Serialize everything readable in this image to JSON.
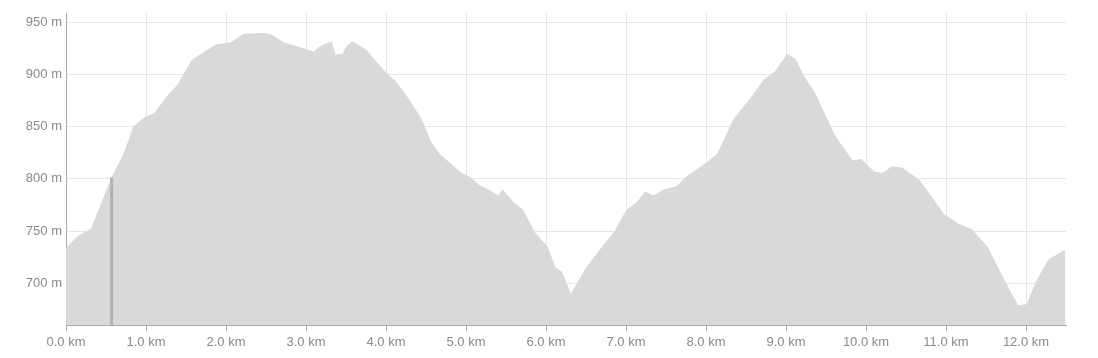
{
  "chart_data": {
    "type": "area",
    "color": "#d9d9d9",
    "x": [
      0,
      0.16,
      0.31,
      0.56,
      0.72,
      0.84,
      0.98,
      1.1,
      1.28,
      1.39,
      1.57,
      1.73,
      1.88,
      2.06,
      2.22,
      2.49,
      2.58,
      2.72,
      2.9,
      3.1,
      3.17,
      3.32,
      3.37,
      3.46,
      3.5,
      3.58,
      3.75,
      4.0,
      4.13,
      4.29,
      4.45,
      4.56,
      4.67,
      4.85,
      4.96,
      5.05,
      5.17,
      5.28,
      5.4,
      5.46,
      5.59,
      5.71,
      5.86,
      6.02,
      6.12,
      6.2,
      6.31,
      6.5,
      6.72,
      6.85,
      7.0,
      7.14,
      7.24,
      7.34,
      7.48,
      7.63,
      7.77,
      8.01,
      8.14,
      8.34,
      8.59,
      8.72,
      8.86,
      9.02,
      9.12,
      9.23,
      9.36,
      9.61,
      9.83,
      9.94,
      10.1,
      10.21,
      10.32,
      10.45,
      10.67,
      10.98,
      11.16,
      11.32,
      11.52,
      11.7,
      11.9,
      12.01,
      12.12,
      12.28,
      12.49
    ],
    "values": [
      734,
      746,
      752,
      800,
      824,
      850,
      859,
      863,
      881,
      890,
      914,
      922,
      929,
      931,
      939,
      940,
      938,
      931,
      927,
      922,
      927,
      932,
      919,
      920,
      927,
      932,
      924,
      902,
      893,
      876,
      857,
      836,
      824,
      812,
      805,
      802,
      794,
      790,
      784,
      790,
      778,
      771,
      749,
      735,
      715,
      711,
      690,
      715,
      737,
      749,
      770,
      778,
      788,
      784,
      790,
      793,
      803,
      816,
      824,
      857,
      881,
      895,
      903,
      920,
      915,
      898,
      883,
      842,
      818,
      819,
      807,
      806,
      812,
      811,
      799,
      766,
      757,
      752,
      735,
      708,
      679,
      680,
      701,
      723,
      732
    ],
    "xlim": [
      0,
      12.5
    ],
    "ylim": [
      660,
      959
    ],
    "xticks": [
      {
        "value": 0,
        "label": "0.0 km"
      },
      {
        "value": 1,
        "label": "1.0 km"
      },
      {
        "value": 2,
        "label": "2.0 km"
      },
      {
        "value": 3,
        "label": "3.0 km"
      },
      {
        "value": 4,
        "label": "4.0 km"
      },
      {
        "value": 5,
        "label": "5.0 km"
      },
      {
        "value": 6,
        "label": "6.0 km"
      },
      {
        "value": 7,
        "label": "7.0 km"
      },
      {
        "value": 8,
        "label": "8.0 km"
      },
      {
        "value": 9,
        "label": "9.0 km"
      },
      {
        "value": 10,
        "label": "10.0 km"
      },
      {
        "value": 11,
        "label": "11.0 km"
      },
      {
        "value": 12,
        "label": "12.0 km"
      }
    ],
    "yticks": [
      {
        "value": 700,
        "label": "700 m"
      },
      {
        "value": 750,
        "label": "750 m"
      },
      {
        "value": 800,
        "label": "800 m"
      },
      {
        "value": 850,
        "label": "850 m"
      },
      {
        "value": 900,
        "label": "900 m"
      },
      {
        "value": 950,
        "label": "950 m"
      }
    ],
    "grid": true,
    "legend": false,
    "marker": "none",
    "ref_lines": [
      {
        "axis": "x",
        "value": 0.57,
        "color": "#b3b3b3"
      }
    ]
  }
}
